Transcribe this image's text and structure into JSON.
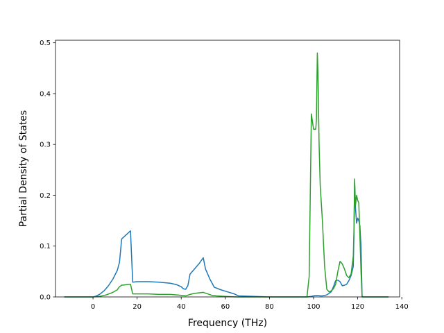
{
  "chart_data": {
    "type": "line",
    "title": "",
    "xlabel": "Frequency (THz)",
    "ylabel": "Partial Density of States",
    "xlim": [
      -17,
      139
    ],
    "ylim": [
      0,
      0.505
    ],
    "xticks": [
      0,
      20,
      40,
      60,
      80,
      100,
      120,
      140
    ],
    "yticks": [
      0.0,
      0.1,
      0.2,
      0.3,
      0.4,
      0.5
    ],
    "xtick_labels": [
      "0",
      "20",
      "40",
      "60",
      "80",
      "100",
      "120",
      "140"
    ],
    "ytick_labels": [
      "0.0",
      "0.1",
      "0.2",
      "0.3",
      "0.4",
      "0.5"
    ],
    "grid": false,
    "legend": "none",
    "series": [
      {
        "color": "#1f77b4",
        "x": [
          -13,
          0,
          1,
          3,
          5,
          7,
          9,
          11,
          12,
          13,
          15,
          17,
          18,
          20,
          25,
          30,
          35,
          38,
          40,
          41,
          42,
          43,
          44,
          46,
          48,
          49,
          50,
          51,
          53,
          55,
          58,
          61,
          64,
          66,
          80,
          97,
          98,
          99,
          100,
          101,
          102,
          103,
          104,
          106,
          108,
          109,
          110,
          111,
          112,
          113,
          114,
          115,
          116,
          117,
          118,
          118.3,
          118.6,
          119,
          119.5,
          120,
          120.5,
          121,
          121.5,
          122,
          134
        ],
        "y": [
          0,
          0,
          0.001,
          0.005,
          0.012,
          0.022,
          0.035,
          0.052,
          0.068,
          0.114,
          0.122,
          0.13,
          0.029,
          0.03,
          0.03,
          0.029,
          0.027,
          0.024,
          0.02,
          0.016,
          0.015,
          0.022,
          0.045,
          0.055,
          0.065,
          0.071,
          0.077,
          0.055,
          0.035,
          0.019,
          0.014,
          0.01,
          0.006,
          0.002,
          0,
          0,
          0.0005,
          0.001,
          0.002,
          0.003,
          0.003,
          0.002,
          0.002,
          0.004,
          0.01,
          0.02,
          0.032,
          0.033,
          0.03,
          0.022,
          0.023,
          0.025,
          0.032,
          0.042,
          0.06,
          0.12,
          0.225,
          0.175,
          0.145,
          0.155,
          0.15,
          0.14,
          0.1,
          0,
          0
        ]
      },
      {
        "color": "#2ca02c",
        "x": [
          -13,
          0,
          3,
          6,
          9,
          11,
          12,
          13,
          15,
          17,
          18,
          20,
          25,
          30,
          35,
          38,
          40,
          42,
          44,
          46,
          48,
          50,
          52,
          54,
          56,
          60,
          65,
          80,
          97,
          98,
          99,
          100,
          100.5,
          101,
          101.3,
          101.7,
          102,
          102.5,
          103,
          104,
          105,
          106,
          107,
          108,
          109,
          110,
          111,
          112,
          113,
          114,
          115,
          116,
          117,
          118,
          118.3,
          118.6,
          119,
          119.5,
          120,
          120.5,
          121,
          121.5,
          122,
          134
        ],
        "y": [
          0,
          0,
          0.001,
          0.004,
          0.009,
          0.014,
          0.02,
          0.023,
          0.024,
          0.025,
          0.006,
          0.006,
          0.006,
          0.005,
          0.005,
          0.004,
          0.003,
          0.002,
          0.005,
          0.007,
          0.008,
          0.009,
          0.006,
          0.003,
          0.002,
          0.001,
          0,
          0,
          0,
          0.04,
          0.36,
          0.33,
          0.33,
          0.33,
          0.35,
          0.48,
          0.44,
          0.3,
          0.22,
          0.15,
          0.06,
          0.015,
          0.01,
          0.012,
          0.016,
          0.025,
          0.05,
          0.07,
          0.065,
          0.055,
          0.042,
          0.038,
          0.045,
          0.08,
          0.13,
          0.232,
          0.18,
          0.2,
          0.19,
          0.185,
          0.12,
          0.05,
          0,
          0
        ]
      }
    ]
  }
}
